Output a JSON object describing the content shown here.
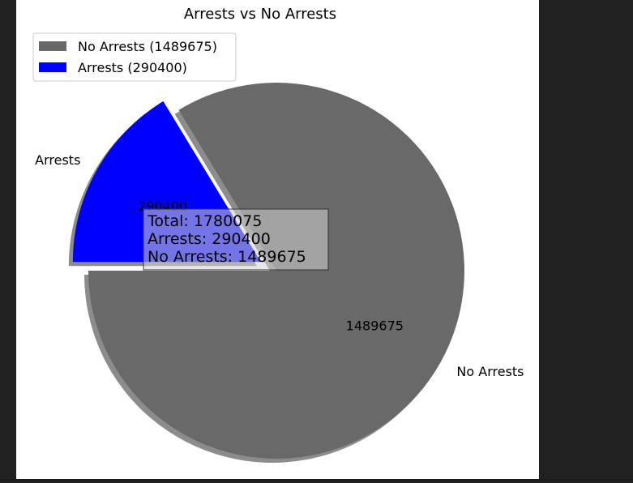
{
  "chart_data": {
    "type": "pie",
    "title": "Arrests vs No Arrests",
    "slices": [
      {
        "label": "No Arrests",
        "value": 1489675,
        "color": "#696969",
        "value_label": "1489675",
        "explode": false
      },
      {
        "label": "Arrests",
        "value": 290400,
        "color": "#0000ff",
        "value_label": "290400",
        "explode": true
      }
    ],
    "shadow": true,
    "legend": {
      "placement": "top-left",
      "entries": [
        "No Arrests (1489675)",
        "Arrests (290400)"
      ]
    },
    "annotation": {
      "lines": [
        "Total: 1780075",
        "Arrests: 290400",
        "No Arrests: 1489675"
      ]
    }
  }
}
